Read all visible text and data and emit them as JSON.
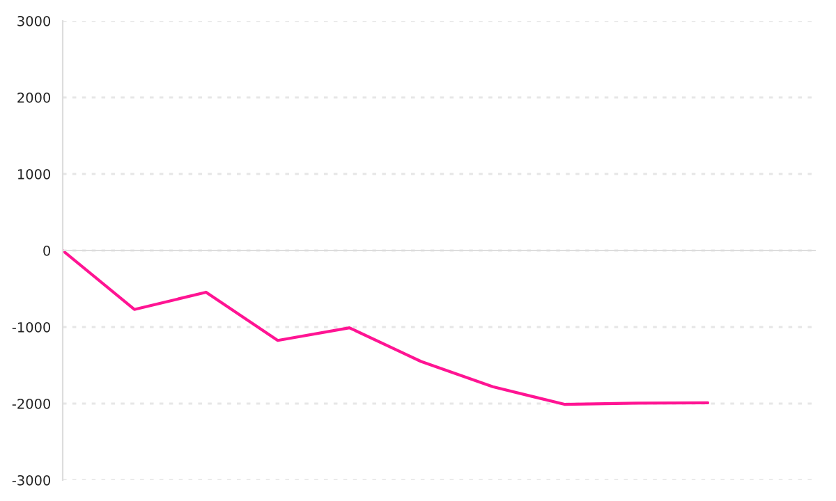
{
  "chart_data": {
    "type": "line",
    "categories": [
      null,
      null,
      null,
      null,
      null,
      null,
      null,
      null,
      null,
      null
    ],
    "series": [
      {
        "color": "#ff1493",
        "values": [
          0,
          -770,
          -545,
          -1175,
          -1010,
          -1450,
          -1780,
          -2010,
          -1995,
          -1990
        ]
      }
    ],
    "ylim": [
      -3000,
      3000
    ],
    "yticks": [
      -3000,
      -2000,
      -1000,
      0,
      1000,
      2000,
      3000
    ],
    "grid": "y",
    "tick_labels": "y",
    "marker": "none",
    "line_style": "solid"
  }
}
